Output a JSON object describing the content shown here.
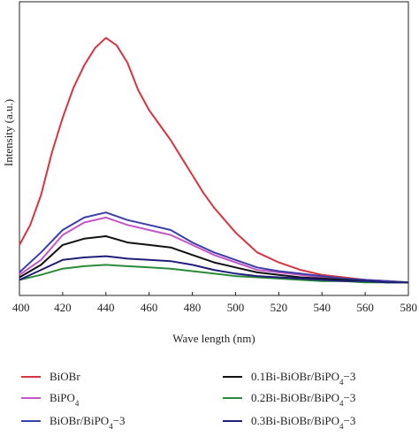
{
  "chart_data": {
    "type": "line",
    "title": "",
    "xlabel": "Wave length (nm)",
    "ylabel": "Intensity (a.u.)",
    "xlim": [
      400,
      580
    ],
    "ylim": [
      0,
      100
    ],
    "xticks": [
      "400",
      "420",
      "440",
      "460",
      "480",
      "500",
      "520",
      "540",
      "560",
      "580"
    ],
    "yticks": [],
    "grid": false,
    "legend_placement": "bottom",
    "series": [
      {
        "name": "BiOBr",
        "color": "#d9333f",
        "x": [
          400,
          405,
          410,
          415,
          420,
          425,
          430,
          435,
          440,
          445,
          450,
          455,
          460,
          465,
          470,
          475,
          480,
          485,
          490,
          495,
          500,
          505,
          510,
          520,
          530,
          540,
          550,
          560,
          570,
          580
        ],
        "y": [
          16,
          24,
          36,
          53,
          67,
          79,
          88,
          95,
          99,
          96,
          89,
          78,
          70,
          64,
          58,
          51,
          44,
          37,
          31,
          26,
          21,
          17,
          13,
          9,
          6,
          4,
          3,
          2,
          1.5,
          1
        ]
      },
      {
        "name": "BiPO4",
        "color": "#c455c4",
        "x": [
          400,
          410,
          420,
          430,
          440,
          450,
          460,
          470,
          480,
          490,
          500,
          510,
          520,
          530,
          540,
          550,
          560,
          570,
          580
        ],
        "y": [
          4,
          10,
          20,
          25,
          27,
          24,
          22,
          20,
          16,
          12,
          9,
          6,
          5,
          4,
          3,
          2.5,
          2,
          1.5,
          1
        ]
      },
      {
        "name": "BiOBr/BiPO4−3",
        "color": "#3b3fa8",
        "x": [
          400,
          410,
          420,
          430,
          440,
          450,
          460,
          470,
          480,
          490,
          500,
          510,
          520,
          530,
          540,
          550,
          560,
          570,
          580
        ],
        "y": [
          5,
          13,
          22,
          27,
          29,
          26,
          24,
          22,
          17,
          13,
          10,
          7,
          5.5,
          4.5,
          3.5,
          2.5,
          2,
          1.5,
          1
        ]
      },
      {
        "name": "0.1Bi-BiOBr/BiPO4−3",
        "color": "#111111",
        "x": [
          400,
          410,
          420,
          430,
          440,
          450,
          460,
          470,
          480,
          490,
          500,
          510,
          520,
          530,
          540,
          550,
          560,
          570,
          580
        ],
        "y": [
          3,
          8,
          16,
          18.5,
          19.5,
          17,
          16,
          15,
          12,
          9,
          7,
          5,
          4,
          3,
          2.5,
          2,
          1.5,
          1,
          1
        ]
      },
      {
        "name": "0.2Bi-BiOBr/BiPO4−3",
        "color": "#2a8a3a",
        "x": [
          400,
          410,
          420,
          430,
          440,
          450,
          460,
          470,
          480,
          490,
          500,
          510,
          520,
          530,
          540,
          550,
          560,
          570,
          580
        ],
        "y": [
          2,
          4,
          6.5,
          7.5,
          8,
          7.5,
          7,
          6.5,
          5.5,
          4.5,
          3.5,
          3,
          2.5,
          2,
          1.5,
          1.5,
          1,
          1,
          1
        ]
      },
      {
        "name": "0.3Bi-BiOBr/BiPO4−3",
        "color": "#1f1f7a",
        "x": [
          400,
          410,
          420,
          430,
          440,
          450,
          460,
          470,
          480,
          490,
          500,
          510,
          520,
          530,
          540,
          550,
          560,
          570,
          580
        ],
        "y": [
          2,
          6,
          10,
          11,
          11.5,
          10.5,
          10,
          9.5,
          8,
          6,
          4.5,
          3.5,
          3,
          2.5,
          2,
          1.5,
          1.5,
          1,
          1
        ]
      }
    ]
  }
}
